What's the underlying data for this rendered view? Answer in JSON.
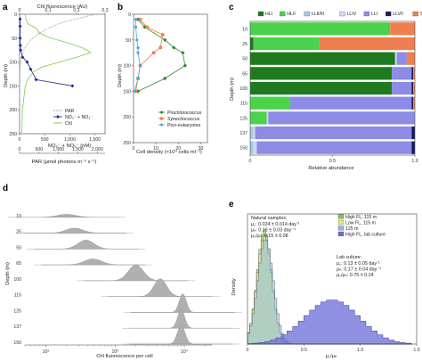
{
  "chart_data": [
    {
      "panel": "a",
      "type": "line",
      "top_axis_label": "Chl fluorescence (AU)",
      "top_ticks": [
        "0",
        "0.1",
        "0.2",
        "0.3"
      ],
      "top_range": [
        0,
        0.3
      ],
      "bottom_label_1": "NO₂⁻ + NO₃⁻ (nM)",
      "bottom_ticks_1": [
        "0",
        "500",
        "1,000",
        "1,500"
      ],
      "bottom_range_1": [
        0,
        1700
      ],
      "bottom_label_2": "PAR (µmol photons m⁻² s⁻¹)",
      "bottom_ticks_2": [
        "0",
        "500",
        "1,000",
        "1,500",
        "2,000"
      ],
      "bottom_range_2": [
        0,
        2200
      ],
      "ylabel": "Depth (m)",
      "y_ticks": [
        "0",
        "50",
        "100",
        "150",
        "200",
        "250"
      ],
      "ylim": [
        0,
        250
      ],
      "legend": [
        "PAR",
        "NO₂⁻ + NO₃⁻",
        "Chl"
      ],
      "series": [
        {
          "name": "PAR",
          "color": "#999999",
          "axis": "par",
          "x": [
            1950,
            1700,
            1350,
            1000,
            720,
            500,
            340,
            220,
            140,
            85,
            50,
            25,
            12,
            5,
            2,
            1
          ],
          "y": [
            0,
            5,
            12,
            20,
            30,
            40,
            50,
            60,
            70,
            80,
            90,
            100,
            115,
            130,
            150,
            175
          ]
        },
        {
          "name": "NO₂⁻ + NO₃⁻",
          "color": "#1f2d8c",
          "axis": "nitrate",
          "x": [
            10,
            10,
            10,
            15,
            20,
            60,
            150,
            220,
            330,
            1050
          ],
          "y": [
            10,
            25,
            50,
            65,
            75,
            90,
            100,
            115,
            137,
            150
          ]
        },
        {
          "name": "Chl",
          "color": "#7ec850",
          "axis": "chl",
          "x": [
            0.02,
            0.022,
            0.03,
            0.06,
            0.07,
            0.11,
            0.17,
            0.22,
            0.25,
            0.2,
            0.14,
            0.08,
            0.05,
            0.03,
            0.02,
            0.015,
            0.01,
            0.008
          ],
          "y": [
            0,
            10,
            20,
            30,
            40,
            50,
            60,
            70,
            80,
            90,
            100,
            110,
            120,
            135,
            150,
            175,
            200,
            250
          ]
        }
      ]
    },
    {
      "panel": "b",
      "type": "line",
      "xlabel": "Cell density (×10⁴ cells ml⁻¹)",
      "x_ticks": [
        "0",
        "10",
        "20",
        "30"
      ],
      "xlim": [
        0,
        33
      ],
      "ylabel": "Depth (m)",
      "y_ticks": [
        "0",
        "50",
        "100",
        "150",
        "200",
        "250"
      ],
      "ylim": [
        0,
        250
      ],
      "series": [
        {
          "name": "Prochlorococcus",
          "color": "#2e8b2e",
          "x": [
            2,
            5,
            14,
            18,
            22,
            23,
            14,
            2
          ],
          "y": [
            10,
            25,
            50,
            65,
            75,
            100,
            125,
            150
          ]
        },
        {
          "name": "Synechococcus",
          "color": "#f07f4f",
          "x": [
            3,
            6,
            13,
            12,
            9,
            3,
            2,
            1
          ],
          "y": [
            10,
            25,
            40,
            65,
            75,
            100,
            125,
            150
          ]
        },
        {
          "name": "Pico-eukaryotes",
          "color": "#4aa8d8",
          "x": [
            1,
            1,
            1.5,
            2,
            2,
            3,
            2,
            0.5
          ],
          "y": [
            10,
            25,
            50,
            65,
            75,
            100,
            125,
            150
          ]
        }
      ]
    },
    {
      "panel": "c",
      "type": "bar",
      "orientation": "horizontal-stacked",
      "xlabel": "Relative abundance",
      "x_ticks": [
        "0",
        "0.5",
        "1.0"
      ],
      "xlim": [
        0,
        1
      ],
      "ylabel": "Depth (m)",
      "categories": [
        "10",
        "25",
        "50",
        "65",
        "100",
        "115",
        "125",
        "137",
        "150"
      ],
      "series": [
        {
          "name": "HLI",
          "color": "#1f7a1f",
          "values": [
            0.0,
            0.02,
            0.88,
            0.86,
            0.86,
            0.0,
            0.0,
            0.0,
            0.0
          ]
        },
        {
          "name": "HLII",
          "color": "#4cd24c",
          "values": [
            0.85,
            0.4,
            0.0,
            0.0,
            0.0,
            0.24,
            0.1,
            0.0,
            0.0
          ]
        },
        {
          "name": "LLII/III",
          "color": "#a8c8e8",
          "values": [
            0.0,
            0.0,
            0.0,
            0.0,
            0.0,
            0.0,
            0.0,
            0.02,
            0.02
          ]
        },
        {
          "name": "LLIV",
          "color": "#cfd8f0",
          "values": [
            0.0,
            0.0,
            0.01,
            0.0,
            0.0,
            0.0,
            0.01,
            0.01,
            0.02
          ]
        },
        {
          "name": "LLI",
          "color": "#8c8ce6",
          "values": [
            0.0,
            0.0,
            0.06,
            0.12,
            0.12,
            0.74,
            0.89,
            0.95,
            0.94
          ]
        },
        {
          "name": "LLVII",
          "color": "#1a1a5a",
          "values": [
            0.0,
            0.0,
            0.0,
            0.01,
            0.01,
            0.01,
            0.0,
            0.02,
            0.02
          ]
        },
        {
          "name": "Syn",
          "color": "#f07f4f",
          "values": [
            0.15,
            0.58,
            0.05,
            0.01,
            0.01,
            0.01,
            0.0,
            0.0,
            0.0
          ]
        }
      ]
    },
    {
      "panel": "d",
      "type": "area",
      "subtype": "ridgeline",
      "xlabel": "Chl fluorescence per cell",
      "x_ticks": [
        "10²",
        "10³",
        "10⁴"
      ],
      "x_scale": "log",
      "xlim": [
        50,
        25000
      ],
      "ylabel": "Depth (m)",
      "categories": [
        "10",
        "25",
        "50",
        "65",
        "100",
        "115",
        "125",
        "137",
        "150"
      ],
      "peaks": [
        {
          "depth": "10",
          "center": 200,
          "height": 0.15,
          "width": 0.32
        },
        {
          "depth": "25",
          "center": 260,
          "height": 0.25,
          "width": 0.3
        },
        {
          "depth": "50",
          "center": 380,
          "height": 0.45,
          "width": 0.28
        },
        {
          "depth": "65",
          "center": 480,
          "height": 0.3,
          "width": 0.3
        },
        {
          "depth": "100",
          "center": 2000,
          "height": 0.8,
          "width": 0.26
        },
        {
          "depth": "115",
          "center": 4500,
          "height": 0.9,
          "width": 0.22
        },
        {
          "depth": "125",
          "center": 9500,
          "height": 0.95,
          "width": 0.12
        },
        {
          "depth": "137",
          "center": 9000,
          "height": 0.95,
          "width": 0.12
        },
        {
          "depth": "150",
          "center": 9000,
          "height": 0.95,
          "width": 0.13
        }
      ]
    },
    {
      "panel": "e",
      "type": "area",
      "subtype": "histogram",
      "xlabel": "μ꜀/μₙ",
      "x_ticks": [
        "0",
        "0.5",
        "1.0",
        "1.5"
      ],
      "xlim": [
        0,
        1.5
      ],
      "ylabel": "Density",
      "legend": [
        "High FL, 115 m",
        "Low FL, 115 m",
        "125 m",
        "High FL, lab culture"
      ],
      "series": [
        {
          "name": "High FL, 115 m",
          "color": "#7ec850",
          "mean": 0.15,
          "sd": 0.065,
          "peak": 0.93
        },
        {
          "name": "Low FL, 115 m",
          "color": "#f2e58c",
          "mean": 0.15,
          "sd": 0.066,
          "peak": 0.88
        },
        {
          "name": "125 m",
          "color": "#8fbde8",
          "mean": 0.16,
          "sd": 0.07,
          "peak": 0.85
        },
        {
          "name": "High FL, lab culture",
          "color": "#6b6bd8",
          "mean": 0.75,
          "sd": 0.24,
          "peak": 0.36
        }
      ],
      "annotations": {
        "natural_title": "Natural samples:",
        "natural_lines": [
          "μ꜀: 0.024 ± 0.014 day⁻¹",
          "μₙ: 0.16 ± 0.03 day⁻¹",
          "μ꜀/μₙ: 0.15 ± 0.08"
        ],
        "lab_title": "Lab culture:",
        "lab_lines": [
          "μ꜀: 0.13 ± 0.05 day⁻¹",
          "μₙ: 0.17 ± 0.04 day⁻¹",
          "μ꜀/μₙ: 0.75 ± 0.24"
        ]
      }
    }
  ]
}
